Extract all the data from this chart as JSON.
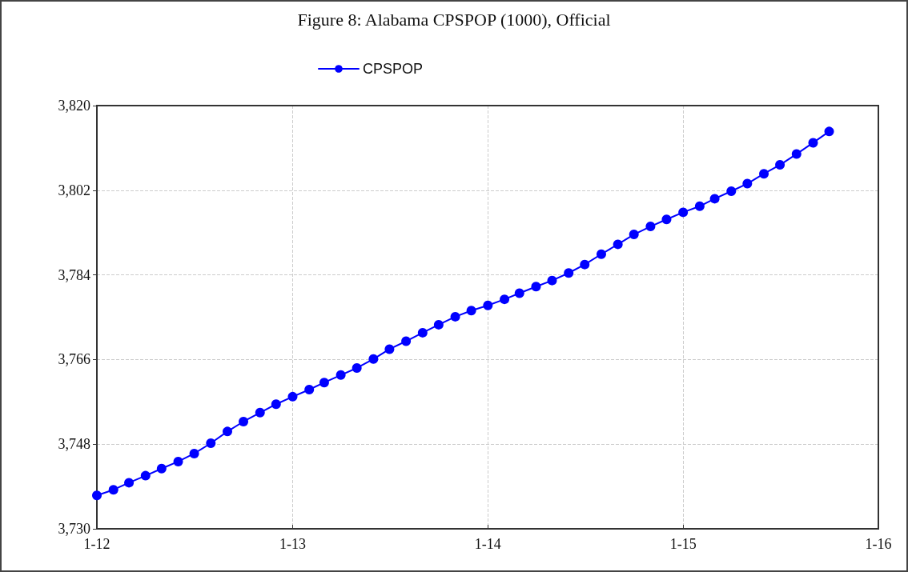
{
  "chart_data": {
    "type": "line",
    "title": "Figure 8: Alabama CPSPOP (1000), Official",
    "x": [
      "2012-01",
      "2012-02",
      "2012-03",
      "2012-04",
      "2012-05",
      "2012-06",
      "2012-07",
      "2012-08",
      "2012-09",
      "2012-10",
      "2012-11",
      "2012-12",
      "2013-01",
      "2013-02",
      "2013-03",
      "2013-04",
      "2013-05",
      "2013-06",
      "2013-07",
      "2013-08",
      "2013-09",
      "2013-10",
      "2013-11",
      "2013-12",
      "2014-01",
      "2014-02",
      "2014-03",
      "2014-04",
      "2014-05",
      "2014-06",
      "2014-07",
      "2014-08",
      "2014-09",
      "2014-10",
      "2014-11",
      "2014-12",
      "2015-01",
      "2015-02",
      "2015-03",
      "2015-04",
      "2015-05",
      "2015-06",
      "2015-07",
      "2015-08",
      "2015-09",
      "2015-10"
    ],
    "series": [
      {
        "name": "CPSPOP",
        "color": "#0000ff",
        "values": [
          3737.1,
          3738.3,
          3739.8,
          3741.3,
          3742.8,
          3744.3,
          3746.0,
          3748.2,
          3750.7,
          3752.8,
          3754.7,
          3756.5,
          3758.1,
          3759.6,
          3761.1,
          3762.7,
          3764.2,
          3766.1,
          3768.2,
          3769.9,
          3771.7,
          3773.4,
          3775.1,
          3776.4,
          3777.5,
          3778.8,
          3780.1,
          3781.5,
          3782.8,
          3784.4,
          3786.2,
          3788.4,
          3790.5,
          3792.6,
          3794.3,
          3795.8,
          3797.3,
          3798.6,
          3800.2,
          3801.8,
          3803.4,
          3805.5,
          3807.4,
          3809.7,
          3812.1,
          3814.5
        ]
      }
    ],
    "xlim": [
      "2012-01",
      "2016-01"
    ],
    "xticks": [
      {
        "value": "2012-01",
        "label": "1-12"
      },
      {
        "value": "2013-01",
        "label": "1-13"
      },
      {
        "value": "2014-01",
        "label": "1-14"
      },
      {
        "value": "2015-01",
        "label": "1-15"
      },
      {
        "value": "2016-01",
        "label": "1-16"
      }
    ],
    "ylim": [
      3730,
      3820
    ],
    "yticks": [
      {
        "value": 3730,
        "label": "3,730"
      },
      {
        "value": 3748,
        "label": "3,748"
      },
      {
        "value": 3766,
        "label": "3,766"
      },
      {
        "value": 3784,
        "label": "3,784"
      },
      {
        "value": 3802,
        "label": "3,802"
      },
      {
        "value": 3820,
        "label": "3,820"
      }
    ],
    "grid": true,
    "legend": "top",
    "marker": "circle",
    "line_style": "solid"
  }
}
